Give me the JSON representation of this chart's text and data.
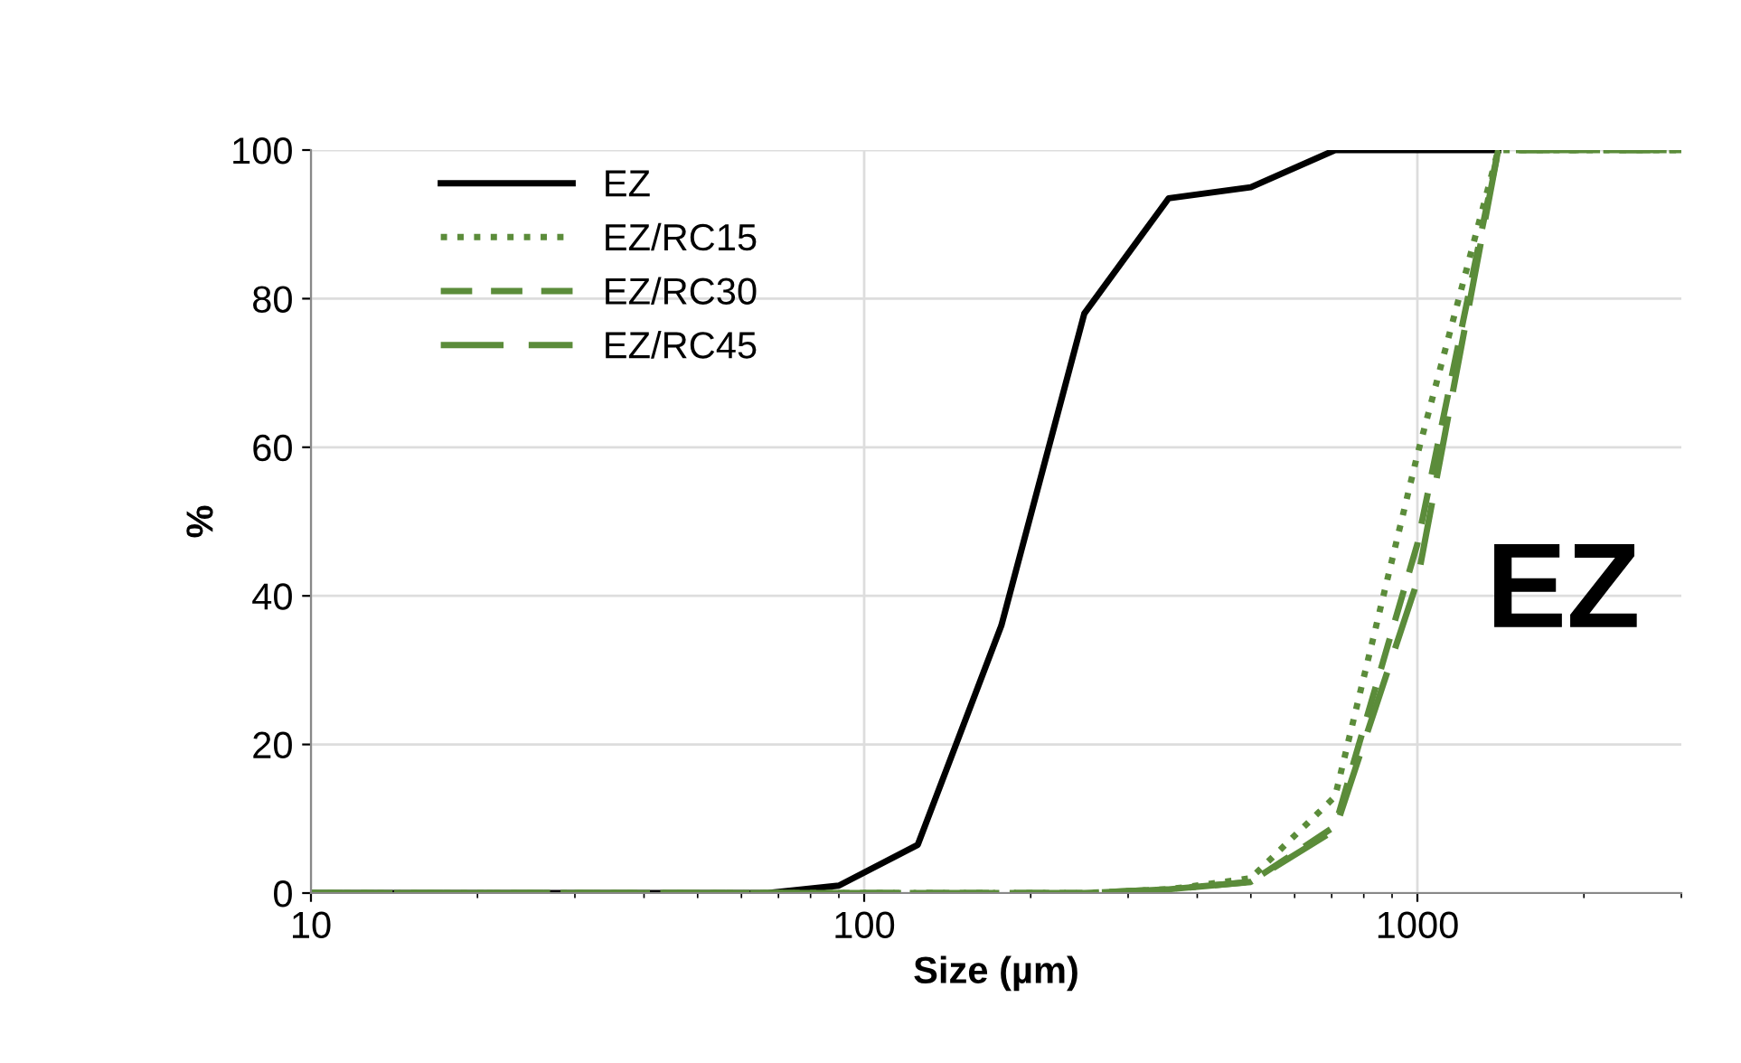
{
  "chart_data": {
    "type": "line",
    "xlabel": "Size (µm)",
    "ylabel": "%",
    "log": "x",
    "xlim": [
      10,
      3000
    ],
    "xticks": [
      10,
      100,
      1000
    ],
    "ylim": [
      0,
      100
    ],
    "yticks": [
      0,
      20,
      40,
      60,
      80,
      100
    ],
    "grid": true,
    "legend": "top left",
    "marker": "none",
    "annotations": [
      "EZ"
    ],
    "x": [
      10,
      22,
      35,
      45,
      67,
      90,
      125,
      177,
      250,
      355,
      500,
      710,
      1000,
      1400,
      3000
    ],
    "series": [
      {
        "name": "EZ",
        "color": "#000000",
        "line_style": "solid",
        "values": [
          0,
          0,
          0,
          0,
          0,
          1,
          6.5,
          36,
          78,
          93.5,
          95,
          100,
          100,
          100,
          null
        ]
      },
      {
        "name": "EZ/RC15",
        "color": "#5b8c3a",
        "line_style": "dotted",
        "values": [
          0,
          0,
          0,
          0,
          0,
          0,
          0,
          0,
          0,
          0.5,
          2,
          13,
          59,
          100,
          100
        ]
      },
      {
        "name": "EZ/RC30",
        "color": "#5b8c3a",
        "line_style": "dashed",
        "values": [
          0,
          0,
          0,
          0,
          0,
          0,
          0,
          0,
          0,
          0.5,
          1.5,
          9,
          47,
          100,
          100
        ]
      },
      {
        "name": "EZ/RC45",
        "color": "#5b8c3a",
        "line_style": "longdash",
        "values": [
          0,
          0,
          0,
          0,
          0,
          0,
          0,
          0,
          0,
          0.5,
          1.5,
          8.5,
          42,
          100,
          100
        ]
      }
    ]
  }
}
